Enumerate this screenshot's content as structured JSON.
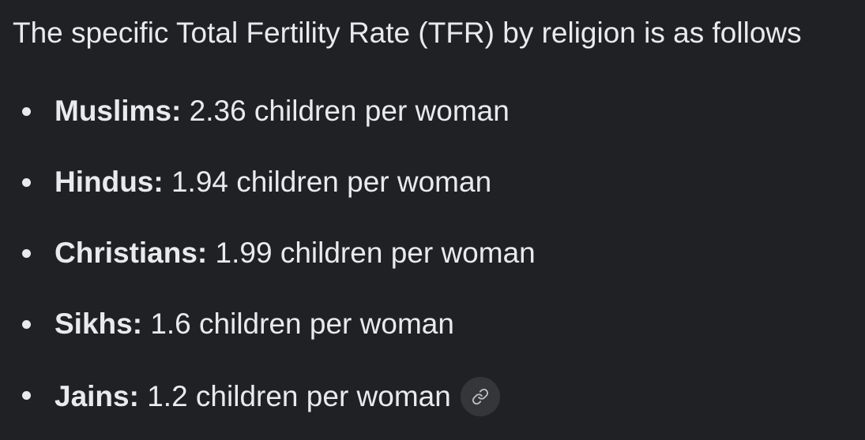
{
  "intro": "The specific Total Fertility Rate (TFR) by religion is as follows",
  "items": [
    {
      "label": "Muslims:",
      "value": "2.36 children per woman"
    },
    {
      "label": "Hindus:",
      "value": "1.94 children per woman"
    },
    {
      "label": "Christians:",
      "value": "1.99 children per woman"
    },
    {
      "label": "Sikhs:",
      "value": "1.6 children per woman"
    },
    {
      "label": "Jains:",
      "value": "1.2 children per woman"
    }
  ],
  "icons": {
    "source_link": "link-icon"
  },
  "colors": {
    "background": "#202124",
    "text": "#e8eaed",
    "chip": "#35363a"
  }
}
